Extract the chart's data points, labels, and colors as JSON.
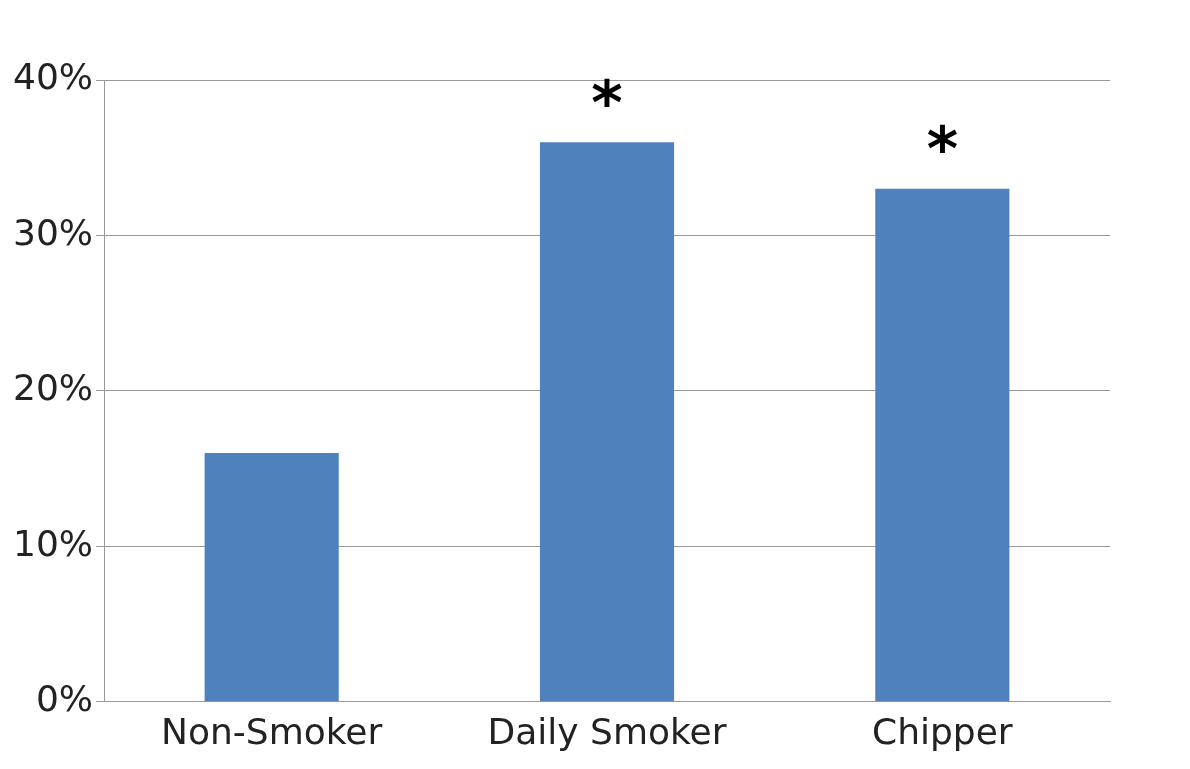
{
  "chart_data": {
    "type": "bar",
    "categories": [
      "Non-Smoker",
      "Daily Smoker",
      "Chipper"
    ],
    "values": [
      16,
      36,
      33
    ],
    "color": "#4f81bd",
    "ylim": [
      0,
      40
    ],
    "yticks": [
      {
        "value": 0,
        "label": "0%"
      },
      {
        "value": 10,
        "label": "10%"
      },
      {
        "value": 20,
        "label": "20%"
      },
      {
        "value": 30,
        "label": "30%"
      },
      {
        "value": 40,
        "label": "40%"
      }
    ],
    "grid": "y",
    "annotations": [
      {
        "text": "*",
        "x": "Daily Smoker",
        "y": 36
      },
      {
        "text": "*",
        "x": "Chipper",
        "y": 33
      }
    ]
  }
}
